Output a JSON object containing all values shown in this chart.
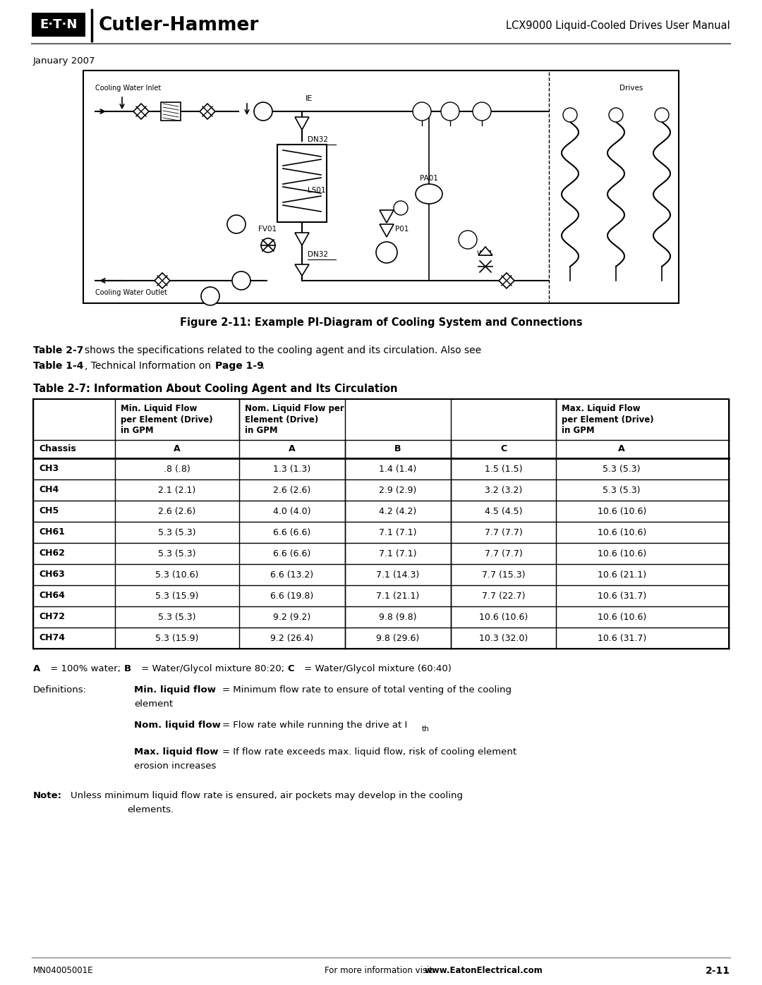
{
  "page_title_right": "LCX9000 Liquid-Cooled Drives User Manual",
  "date": "January 2007",
  "figure_caption": "Figure 2-11: Example PI-Diagram of Cooling System and Connections",
  "table_title": "Table 2-7: Information About Cooling Agent and Its Circulation",
  "sub_headers": [
    "Chassis",
    "A",
    "A",
    "B",
    "C",
    "A"
  ],
  "table_data": [
    [
      "CH3",
      ".8 (.8)",
      "1.3 (1.3)",
      "1.4 (1.4)",
      "1.5 (1.5)",
      "5.3 (5.3)"
    ],
    [
      "CH4",
      "2.1 (2.1)",
      "2.6 (2.6)",
      "2.9 (2.9)",
      "3.2 (3.2)",
      "5.3 (5.3)"
    ],
    [
      "CH5",
      "2.6 (2.6)",
      "4.0 (4.0)",
      "4.2 (4.2)",
      "4.5 (4.5)",
      "10.6 (10.6)"
    ],
    [
      "CH61",
      "5.3 (5.3)",
      "6.6 (6.6)",
      "7.1 (7.1)",
      "7.7 (7.7)",
      "10.6 (10.6)"
    ],
    [
      "CH62",
      "5.3 (5.3)",
      "6.6 (6.6)",
      "7.1 (7.1)",
      "7.7 (7.7)",
      "10.6 (10.6)"
    ],
    [
      "CH63",
      "5.3 (10.6)",
      "6.6 (13.2)",
      "7.1 (14.3)",
      "7.7 (15.3)",
      "10.6 (21.1)"
    ],
    [
      "CH64",
      "5.3 (15.9)",
      "6.6 (19.8)",
      "7.1 (21.1)",
      "7.7 (22.7)",
      "10.6 (31.7)"
    ],
    [
      "CH72",
      "5.3 (5.3)",
      "9.2 (9.2)",
      "9.8 (9.8)",
      "10.6 (10.6)",
      "10.6 (10.6)"
    ],
    [
      "CH74",
      "5.3 (15.9)",
      "9.2 (26.4)",
      "9.8 (29.6)",
      "10.3 (32.0)",
      "10.6 (31.7)"
    ]
  ],
  "footer_left": "MN04005001E",
  "footer_center_bold": "www.EatonElectrical.com",
  "footer_right": "2-11",
  "bg_color": "#ffffff"
}
